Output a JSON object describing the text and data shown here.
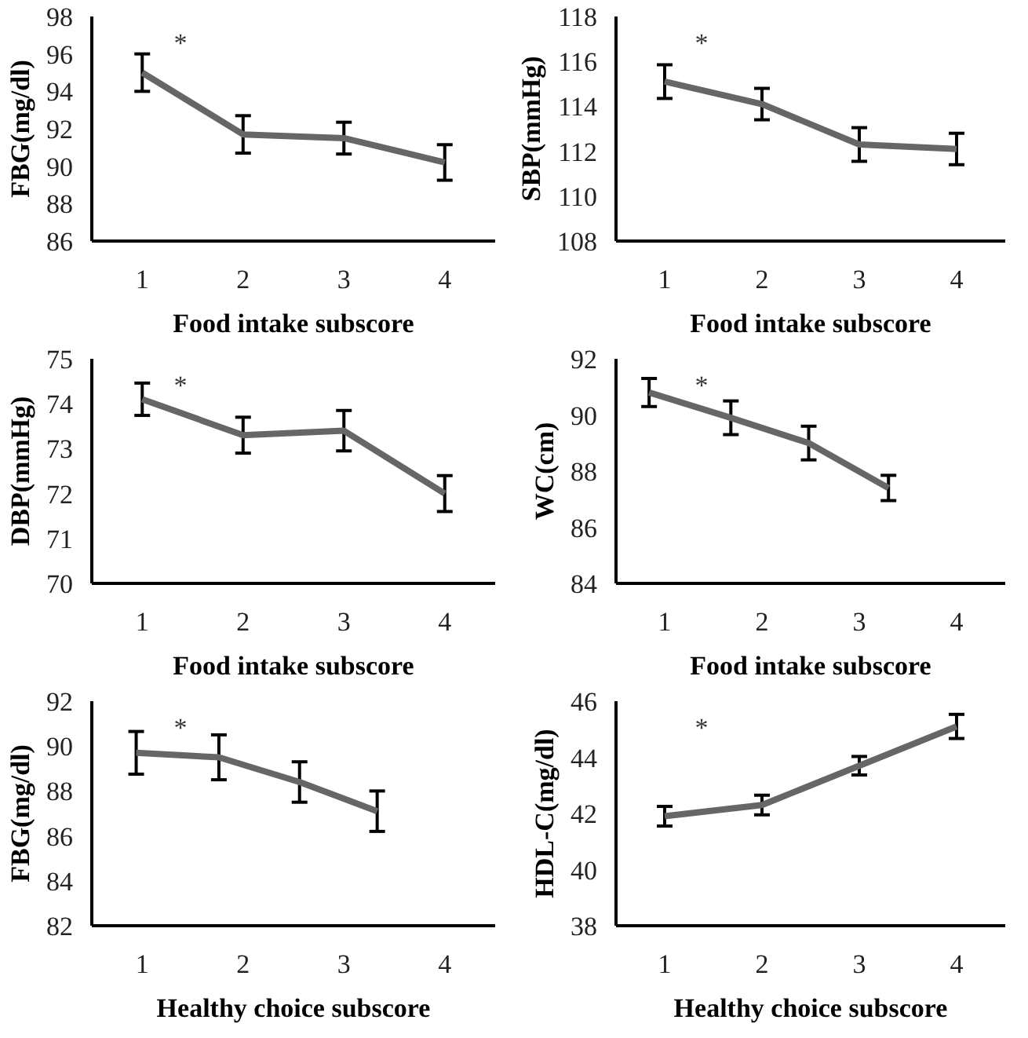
{
  "chart_data": [
    {
      "type": "line",
      "x": [
        1,
        2,
        3,
        4
      ],
      "xlim": [
        0.5,
        4.5
      ],
      "xticks": [
        1,
        2,
        3,
        4
      ],
      "ylim": [
        86,
        98
      ],
      "yticks": [
        86,
        88,
        90,
        92,
        94,
        96,
        98
      ],
      "xlabel": "Food intake subscore",
      "ylabel": "FBG(mg/dl)",
      "series": [
        {
          "color": "#666666",
          "values": [
            95.0,
            91.7,
            91.5,
            90.2
          ],
          "errors": [
            1.0,
            1.0,
            0.85,
            0.95
          ]
        }
      ],
      "annotations": [
        "*"
      ]
    },
    {
      "type": "line",
      "x": [
        1,
        2,
        3,
        4
      ],
      "xlim": [
        0.5,
        4.5
      ],
      "xticks": [
        1,
        2,
        3,
        4
      ],
      "ylim": [
        108,
        118
      ],
      "yticks": [
        108,
        110,
        112,
        114,
        116,
        118
      ],
      "xlabel": "Food intake subscore",
      "ylabel": "SBP(mmHg)",
      "series": [
        {
          "color": "#666666",
          "values": [
            115.1,
            114.1,
            112.3,
            112.1
          ],
          "errors": [
            0.75,
            0.7,
            0.75,
            0.7
          ]
        }
      ],
      "annotations": [
        "*"
      ]
    },
    {
      "type": "line",
      "x": [
        1,
        2,
        3,
        4
      ],
      "xlim": [
        0.5,
        4.5
      ],
      "xticks": [
        1,
        2,
        3,
        4
      ],
      "ylim": [
        70,
        75
      ],
      "yticks": [
        70,
        71,
        72,
        73,
        74,
        75
      ],
      "xlabel": "Food intake subscore",
      "ylabel": "DBP(mmHg)",
      "series": [
        {
          "color": "#666666",
          "values": [
            74.1,
            73.3,
            73.4,
            72.0
          ],
          "errors": [
            0.36,
            0.4,
            0.45,
            0.4
          ]
        }
      ],
      "annotations": [
        "*"
      ]
    },
    {
      "type": "line",
      "x": [
        0.84,
        1.68,
        2.48,
        3.3
      ],
      "xlim": [
        0.5,
        4.5
      ],
      "xticks": [
        1,
        2,
        3,
        4
      ],
      "ylim": [
        84,
        92
      ],
      "yticks": [
        84,
        86,
        88,
        90,
        92
      ],
      "xlabel": "Food intake subscore",
      "ylabel": "WC(cm)",
      "series": [
        {
          "color": "#666666",
          "values": [
            90.8,
            89.9,
            89.0,
            87.4
          ],
          "errors": [
            0.5,
            0.6,
            0.6,
            0.45
          ]
        }
      ],
      "annotations": [
        "*"
      ]
    },
    {
      "type": "line",
      "x": [
        0.94,
        1.76,
        2.56,
        3.33
      ],
      "xlim": [
        0.5,
        4.5
      ],
      "xticks": [
        1,
        2,
        3,
        4
      ],
      "ylim": [
        82,
        92
      ],
      "yticks": [
        82,
        84,
        86,
        88,
        90,
        92
      ],
      "xlabel": "Healthy choice subscore",
      "ylabel": "FBG(mg/dl)",
      "series": [
        {
          "color": "#666666",
          "values": [
            89.7,
            89.5,
            88.4,
            87.1
          ],
          "errors": [
            0.95,
            1.0,
            0.9,
            0.9
          ]
        }
      ],
      "annotations": [
        "*"
      ]
    },
    {
      "type": "line",
      "x": [
        1,
        2,
        3,
        4
      ],
      "xlim": [
        0.5,
        4.5
      ],
      "xticks": [
        1,
        2,
        3,
        4
      ],
      "ylim": [
        38,
        46
      ],
      "yticks": [
        38,
        40,
        42,
        44,
        46
      ],
      "xlabel": "Healthy choice subscore",
      "ylabel": "HDL-C(mg/dl)",
      "series": [
        {
          "color": "#666666",
          "values": [
            41.9,
            42.3,
            43.7,
            45.1
          ],
          "errors": [
            0.35,
            0.35,
            0.33,
            0.43
          ]
        }
      ],
      "annotations": [
        "*"
      ]
    }
  ]
}
